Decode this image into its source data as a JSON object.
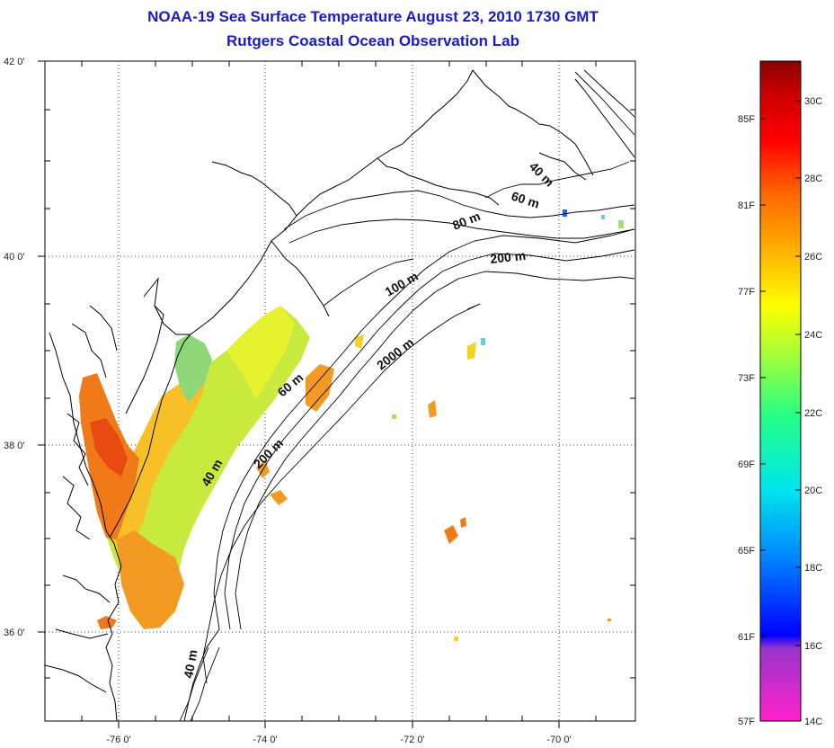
{
  "title": {
    "line1": "NOAA-19 Sea Surface Temperature August 23, 2010 1730 GMT",
    "line2": "Rutgers Coastal Ocean Observation Lab"
  },
  "map": {
    "lat_ticks": [
      "42 0'",
      "40 0'",
      "38 0'",
      "36 0'"
    ],
    "lon_ticks": [
      "-76 0'",
      "-74 0'",
      "-72 0'",
      "-70 0'"
    ],
    "isobaths": [
      {
        "label": "40 m"
      },
      {
        "label": "60 m"
      },
      {
        "label": "80 m"
      },
      {
        "label": "200 m"
      },
      {
        "label": "100 m"
      },
      {
        "label": "2000 m"
      },
      {
        "label": "60 m"
      },
      {
        "label": "200 m"
      },
      {
        "label": "40 m"
      },
      {
        "label": "40 m"
      }
    ]
  },
  "colorbar": {
    "fahrenheit": [
      "85F",
      "81F",
      "77F",
      "73F",
      "69F",
      "65F",
      "61F",
      "57F"
    ],
    "celsius": [
      "30C",
      "28C",
      "26C",
      "24C",
      "22C",
      "20C",
      "18C",
      "16C",
      "14C"
    ],
    "colors": [
      "#ff22cc",
      "#9933cc",
      "#0000ff",
      "#0088ff",
      "#00e5ee",
      "#22ff88",
      "#aaff33",
      "#ffff00",
      "#ffaa00",
      "#ff6600",
      "#ff0000",
      "#cc0000",
      "#8b0000"
    ]
  }
}
